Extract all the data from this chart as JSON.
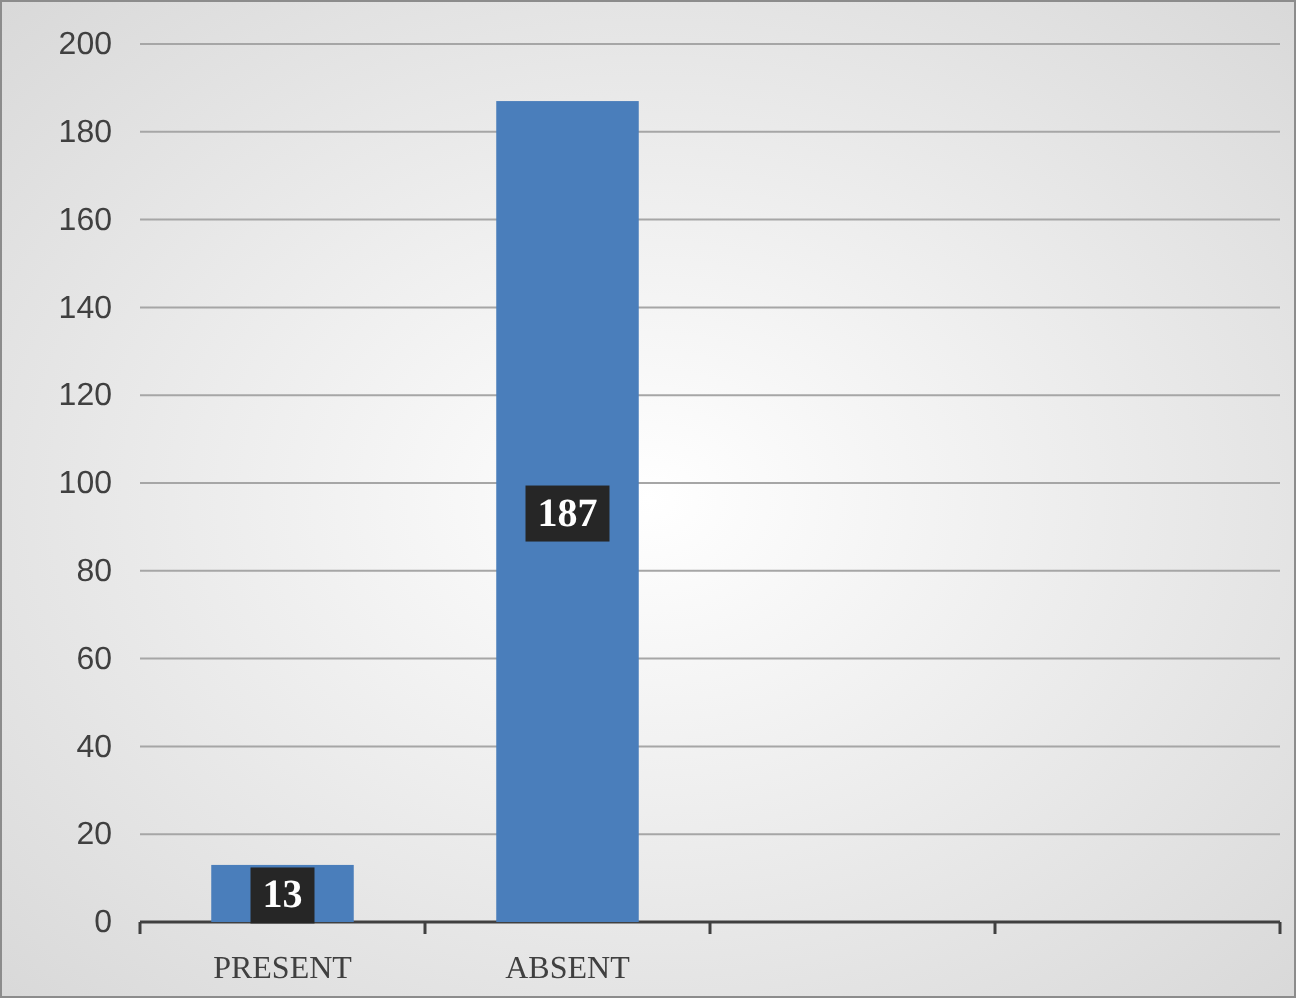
{
  "chart_data": {
    "type": "bar",
    "categories": [
      "PRESENT",
      "ABSENT",
      null,
      null
    ],
    "values": [
      13,
      187,
      null,
      null
    ],
    "color": "#4a7ebb",
    "ylim": [
      0,
      200
    ],
    "yticks": [
      0,
      20,
      40,
      60,
      80,
      100,
      120,
      140,
      160,
      180,
      200
    ],
    "grid": "y",
    "data_labels": true
  }
}
